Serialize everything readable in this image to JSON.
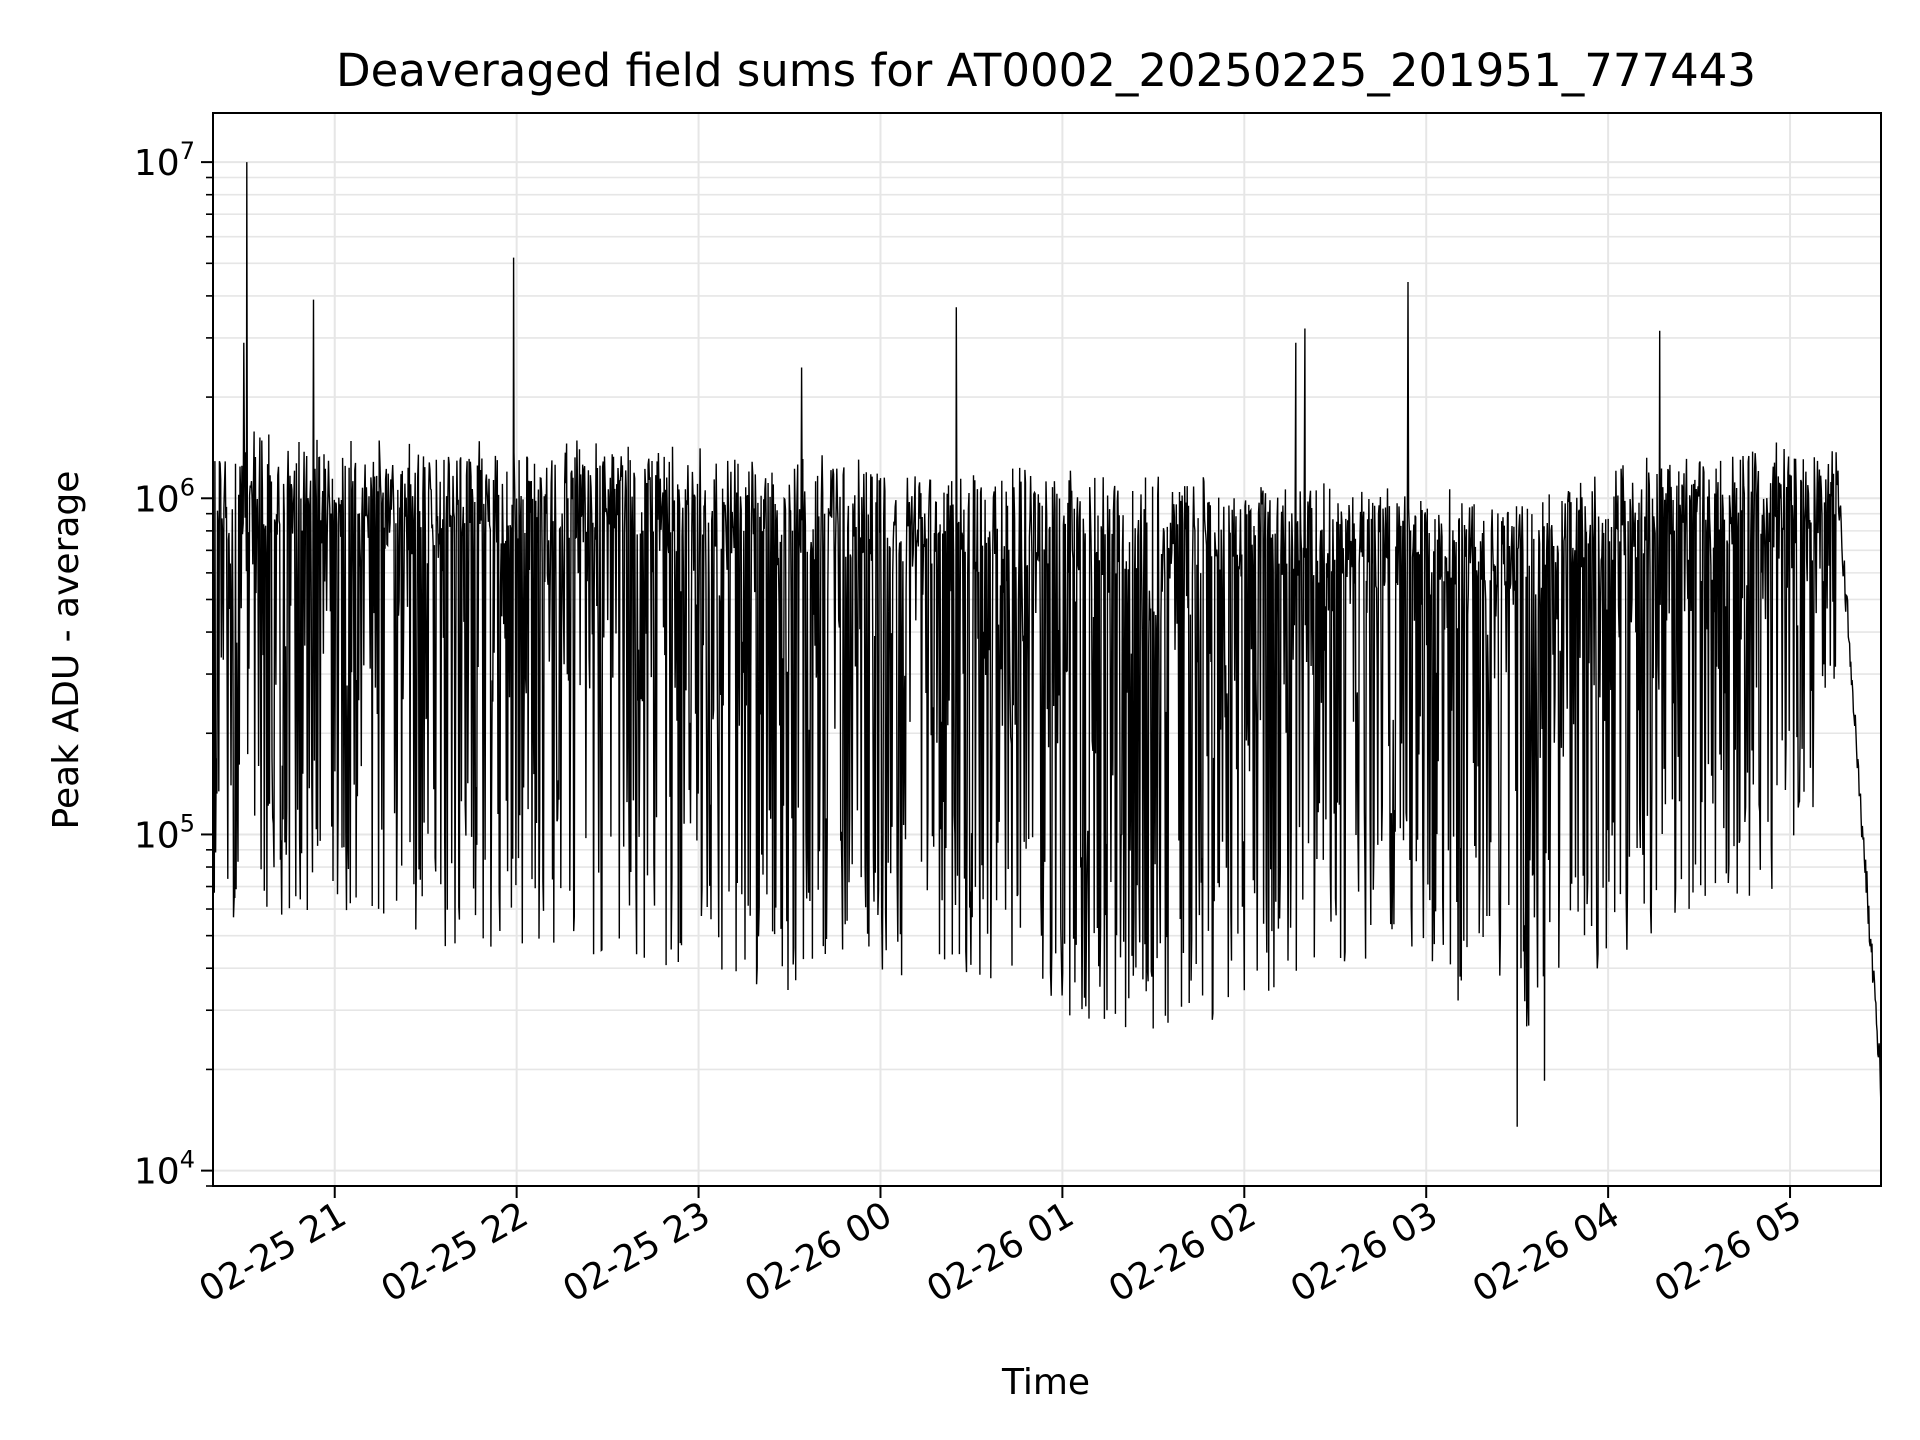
{
  "chart_data": {
    "type": "line",
    "title": "Deaveraged field sums for AT0002_20250225_201951_777443",
    "xlabel": "Time",
    "ylabel": "Peak ADU - average",
    "yscale": "log",
    "ylim": [
      9000,
      14000000
    ],
    "xlim": [
      "2025-02-25 20:19:51",
      "2025-02-26 05:30:00"
    ],
    "grid": true,
    "legend": "none",
    "line_color": "#000000",
    "grid_color": "#e6e6e6",
    "x_ticks": [
      {
        "value": "2025-02-25 21:00",
        "label": "02-25 21"
      },
      {
        "value": "2025-02-25 22:00",
        "label": "02-25 22"
      },
      {
        "value": "2025-02-25 23:00",
        "label": "02-25 23"
      },
      {
        "value": "2025-02-26 00:00",
        "label": "02-26 00"
      },
      {
        "value": "2025-02-26 01:00",
        "label": "02-26 01"
      },
      {
        "value": "2025-02-26 02:00",
        "label": "02-26 02"
      },
      {
        "value": "2025-02-26 03:00",
        "label": "02-26 03"
      },
      {
        "value": "2025-02-26 04:00",
        "label": "02-26 04"
      },
      {
        "value": "2025-02-26 05:00",
        "label": "02-26 05"
      }
    ],
    "y_ticks": [
      {
        "value": 10000,
        "base": "10",
        "exp": "4"
      },
      {
        "value": 100000,
        "base": "10",
        "exp": "5"
      },
      {
        "value": 1000000,
        "base": "10",
        "exp": "6"
      },
      {
        "value": 10000000,
        "base": "10",
        "exp": "7"
      }
    ],
    "envelope": {
      "x": [
        "2025-02-25 20:20",
        "2025-02-25 20:30",
        "2025-02-25 20:45",
        "2025-02-25 21:00",
        "2025-02-25 21:30",
        "2025-02-25 22:00",
        "2025-02-25 22:30",
        "2025-02-25 23:00",
        "2025-02-25 23:30",
        "2025-02-26 00:00",
        "2025-02-26 00:30",
        "2025-02-26 01:00",
        "2025-02-26 01:30",
        "2025-02-26 02:00",
        "2025-02-26 02:30",
        "2025-02-26 03:00",
        "2025-02-26 03:30",
        "2025-02-26 04:00",
        "2025-02-26 04:30",
        "2025-02-26 05:00",
        "2025-02-26 05:15",
        "2025-02-26 05:30"
      ],
      "upper": [
        1500000,
        1600000,
        1550000,
        1500000,
        1500000,
        1500000,
        1500000,
        1450000,
        1400000,
        1300000,
        1250000,
        1250000,
        1200000,
        1200000,
        1150000,
        1100000,
        1000000,
        1350000,
        1450000,
        1500000,
        1600000,
        20000
      ],
      "lower": [
        60000,
        55000,
        55000,
        50000,
        45000,
        45000,
        42000,
        38000,
        33000,
        35000,
        38000,
        28000,
        26000,
        28000,
        40000,
        35000,
        25000,
        40000,
        60000,
        70000,
        200000,
        18000
      ]
    },
    "spikes": [
      {
        "x": "2025-02-25 20:31",
        "y": 10000000
      },
      {
        "x": "2025-02-25 20:30",
        "y": 2900000
      },
      {
        "x": "2025-02-25 20:53",
        "y": 3900000
      },
      {
        "x": "2025-02-25 21:59",
        "y": 5200000
      },
      {
        "x": "2025-02-25 23:34",
        "y": 2450000
      },
      {
        "x": "2025-02-26 00:25",
        "y": 3700000
      },
      {
        "x": "2025-02-26 02:17",
        "y": 2900000
      },
      {
        "x": "2025-02-26 02:20",
        "y": 3200000
      },
      {
        "x": "2025-02-26 02:54",
        "y": 4400000
      },
      {
        "x": "2025-02-26 04:17",
        "y": 3150000
      },
      {
        "x": "2025-02-26 03:30",
        "y": 13500
      },
      {
        "x": "2025-02-26 03:39",
        "y": 18500
      }
    ]
  }
}
